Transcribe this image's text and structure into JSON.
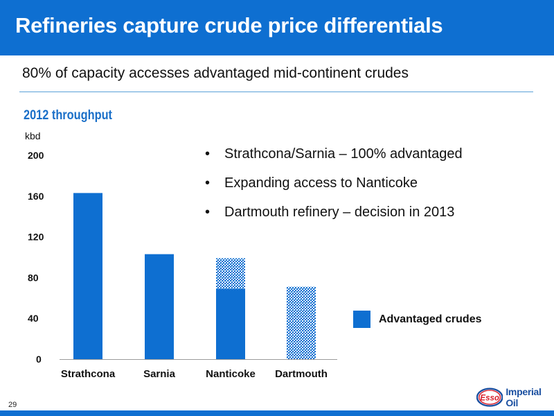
{
  "header": {
    "title": "Refineries capture crude price differentials"
  },
  "subtitle": "80% of capacity accesses advantaged mid-continent crudes",
  "chart_heading": "2012 throughput",
  "bullets": [
    "Strathcona/Sarnia – 100% advantaged",
    "Expanding access to Nanticoke",
    "Dartmouth refinery – decision in 2013"
  ],
  "page_number": "29",
  "logo": {
    "badge": "Esso",
    "wordmark": "Imperial Oil"
  },
  "colors": {
    "brand_blue": "#0e6fd1",
    "heading_blue": "#1a6fc8"
  },
  "chart_data": {
    "type": "bar",
    "stacked": true,
    "categories": [
      "Strathcona",
      "Sarnia",
      "Nanticoke",
      "Dartmouth"
    ],
    "series": [
      {
        "name": "Advantaged crudes",
        "style": "solid",
        "color": "#0e6fd1",
        "values": [
          163,
          103,
          69,
          0
        ]
      },
      {
        "name": "",
        "style": "hatched",
        "color": "#0e6fd1",
        "values": [
          0,
          0,
          30,
          71
        ]
      }
    ],
    "ylabel": "kbd",
    "ylim": [
      0,
      200
    ],
    "yticks": [
      0,
      40,
      80,
      120,
      160,
      200
    ],
    "grid": false,
    "legend": {
      "position": "right",
      "entries": [
        "Advantaged crudes"
      ]
    }
  }
}
